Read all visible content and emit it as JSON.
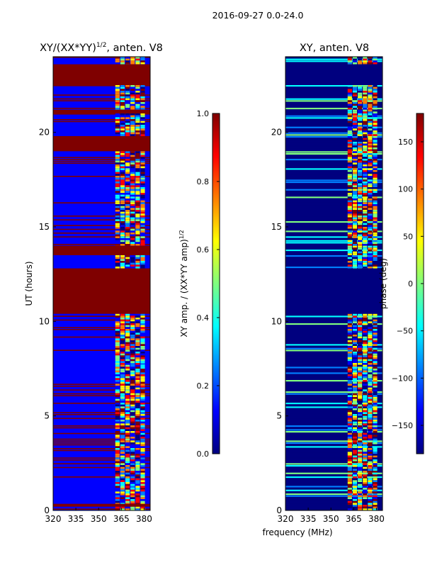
{
  "figure": {
    "suptitle": "2016-09-27 0.0-24.0"
  },
  "colors": {
    "jet": [
      "#00007f",
      "#0000ff",
      "#007fff",
      "#00ffff",
      "#7fff7f",
      "#ffff00",
      "#ff7f00",
      "#ff0000",
      "#7f0000"
    ],
    "flag": "#7f0000",
    "low": "#00007f",
    "band": "#0000ff"
  },
  "chart_data": [
    {
      "type": "heatmap",
      "title": "XY/(XX*YY)",
      "title_sup": "1/2",
      "title_suffix": ", anten. V8",
      "xlabel": "",
      "ylabel": "UT (hours)",
      "xlim": [
        320,
        384
      ],
      "ylim": [
        0,
        24
      ],
      "xticks": [
        "320",
        "335",
        "350",
        "365",
        "380"
      ],
      "xtick_values": [
        320,
        335,
        350,
        365,
        380
      ],
      "yticks": [
        "0",
        "5",
        "10",
        "15",
        "20"
      ],
      "ytick_values": [
        0,
        5,
        10,
        15,
        20
      ],
      "active_band_mhz": [
        361,
        381
      ],
      "flagged_intervals_ut": [
        [
          0.2,
          0.35
        ],
        [
          10.4,
          12.8
        ],
        [
          13.5,
          14.0
        ],
        [
          19.0,
          19.8
        ],
        [
          21.0,
          21.2
        ],
        [
          22.5,
          23.6
        ]
      ],
      "colorbar": {
        "label": "XY amp. / (XX*YY amp)",
        "label_sup": "1/2",
        "min": 0.0,
        "max": 1.0,
        "ticks": [
          "0.0",
          "0.2",
          "0.4",
          "0.6",
          "0.8",
          "1.0"
        ],
        "tick_values": [
          0.0,
          0.2,
          0.4,
          0.6,
          0.8,
          1.0
        ]
      }
    },
    {
      "type": "heatmap",
      "title": "XY, anten. V8",
      "xlabel": "frequency (MHz)",
      "ylabel": "",
      "xlim": [
        320,
        384
      ],
      "ylim": [
        0,
        24
      ],
      "xticks": [
        "320",
        "335",
        "350",
        "365",
        "380"
      ],
      "xtick_values": [
        320,
        335,
        350,
        365,
        380
      ],
      "yticks": [
        "0",
        "5",
        "10",
        "15",
        "20"
      ],
      "ytick_values": [
        0,
        5,
        10,
        15,
        20
      ],
      "active_band_mhz": [
        361,
        381
      ],
      "flagged_intervals_ut": [
        [
          10.4,
          12.8
        ],
        [
          22.5,
          23.6
        ]
      ],
      "colorbar": {
        "label": "phase (deg)",
        "min": -180,
        "max": 180,
        "ticks": [
          "−150",
          "−100",
          "−50",
          "0",
          "50",
          "100",
          "150"
        ],
        "tick_values": [
          -150,
          -100,
          -50,
          0,
          50,
          100,
          150
        ]
      }
    }
  ]
}
